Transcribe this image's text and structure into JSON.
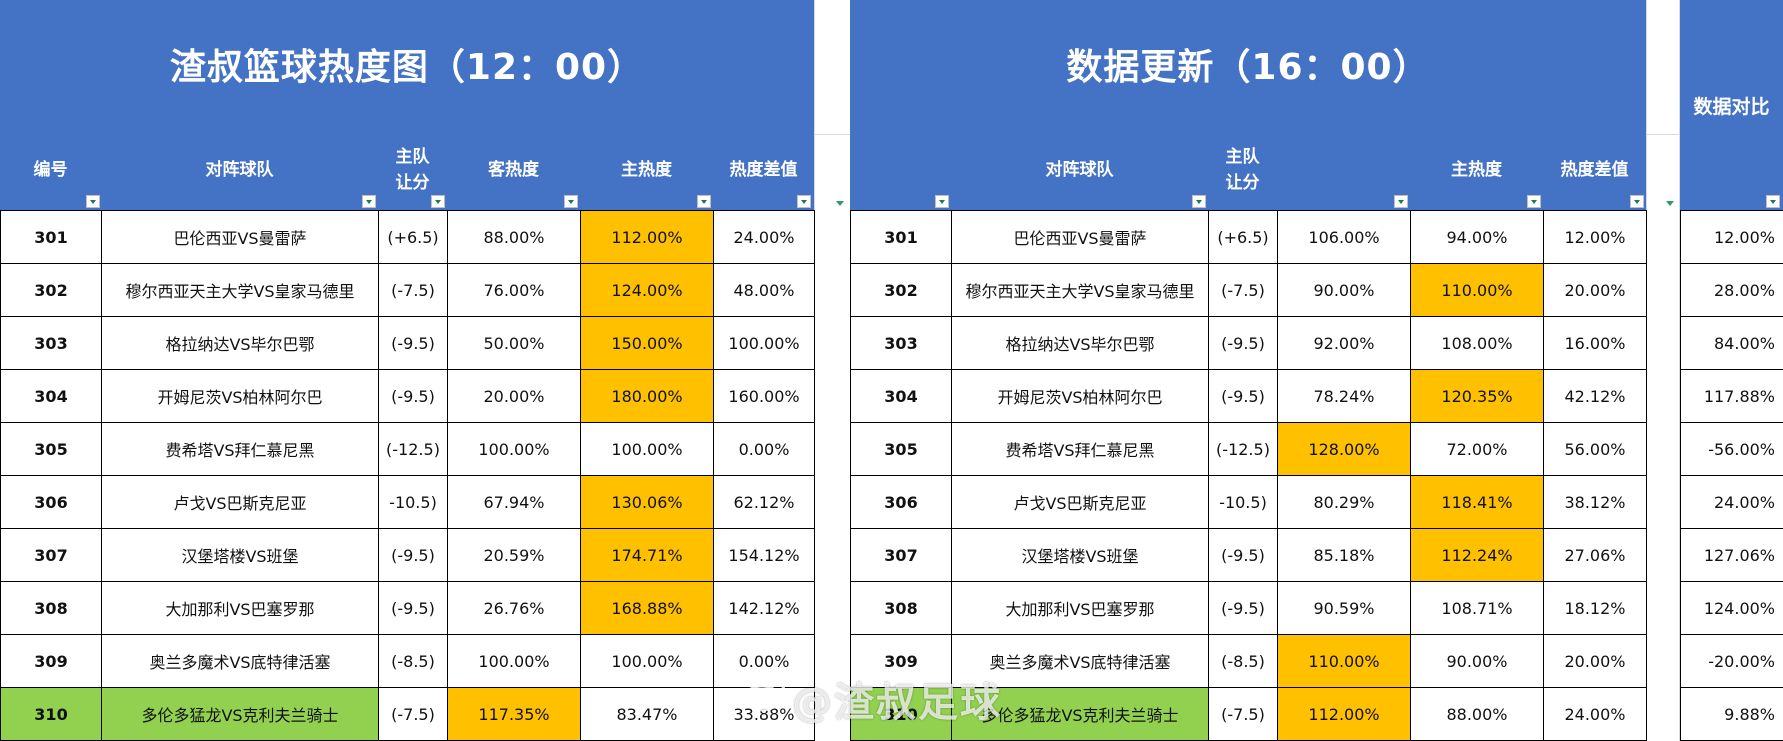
{
  "left": {
    "title": "渣叔篮球热度图（12：00）",
    "headers": [
      "编号",
      "对阵球队",
      "主队\n让分",
      "客热度",
      "主热度",
      "热度差值"
    ],
    "rows": [
      {
        "id": "301",
        "match": "巴伦西亚VS曼雷萨",
        "hc": "(+6.5)",
        "away": "88.00%",
        "home": "112.00%",
        "diff": "24.00%",
        "hl": "home"
      },
      {
        "id": "302",
        "match": "穆尔西亚天主大学VS皇家马德里",
        "hc": "(-7.5)",
        "away": "76.00%",
        "home": "124.00%",
        "diff": "48.00%",
        "hl": "home"
      },
      {
        "id": "303",
        "match": "格拉纳达VS毕尔巴鄂",
        "hc": "(-9.5)",
        "away": "50.00%",
        "home": "150.00%",
        "diff": "100.00%",
        "hl": "home"
      },
      {
        "id": "304",
        "match": "开姆尼茨VS柏林阿尔巴",
        "hc": "(-9.5)",
        "away": "20.00%",
        "home": "180.00%",
        "diff": "160.00%",
        "hl": "home"
      },
      {
        "id": "305",
        "match": "费希塔VS拜仁慕尼黑",
        "hc": "(-12.5)",
        "away": "100.00%",
        "home": "100.00%",
        "diff": "0.00%",
        "hl": ""
      },
      {
        "id": "306",
        "match": "卢戈VS巴斯克尼亚",
        "hc": "-10.5)",
        "away": "67.94%",
        "home": "130.06%",
        "diff": "62.12%",
        "hl": "home"
      },
      {
        "id": "307",
        "match": "汉堡塔楼VS班堡",
        "hc": "(-9.5)",
        "away": "20.59%",
        "home": "174.71%",
        "diff": "154.12%",
        "hl": "home"
      },
      {
        "id": "308",
        "match": "大加那利VS巴塞罗那",
        "hc": "(-9.5)",
        "away": "26.76%",
        "home": "168.88%",
        "diff": "142.12%",
        "hl": "home"
      },
      {
        "id": "309",
        "match": "奥兰多魔术VS底特律活塞",
        "hc": "(-8.5)",
        "away": "100.00%",
        "home": "100.00%",
        "diff": "0.00%",
        "hl": ""
      },
      {
        "id": "310",
        "match": "多伦多猛龙VS克利夫兰骑士",
        "hc": "(-7.5)",
        "away": "117.35%",
        "home": "83.47%",
        "diff": "33.88%",
        "hl": "away",
        "green": true
      }
    ]
  },
  "right": {
    "title": "数据更新（16：00）",
    "headers": [
      "对阵球队",
      "主队\n让分",
      "",
      "主热度",
      "热度差值"
    ],
    "rows": [
      {
        "id": "301",
        "match": "巴伦西亚VS曼雷萨",
        "hc": "(+6.5)",
        "away": "106.00%",
        "home": "94.00%",
        "diff": "12.00%",
        "hl": ""
      },
      {
        "id": "302",
        "match": "穆尔西亚天主大学VS皇家马德里",
        "hc": "(-7.5)",
        "away": "90.00%",
        "home": "110.00%",
        "diff": "20.00%",
        "hl": "home"
      },
      {
        "id": "303",
        "match": "格拉纳达VS毕尔巴鄂",
        "hc": "(-9.5)",
        "away": "92.00%",
        "home": "108.00%",
        "diff": "16.00%",
        "hl": ""
      },
      {
        "id": "304",
        "match": "开姆尼茨VS柏林阿尔巴",
        "hc": "(-9.5)",
        "away": "78.24%",
        "home": "120.35%",
        "diff": "42.12%",
        "hl": "home"
      },
      {
        "id": "305",
        "match": "费希塔VS拜仁慕尼黑",
        "hc": "(-12.5)",
        "away": "128.00%",
        "home": "72.00%",
        "diff": "56.00%",
        "hl": "away"
      },
      {
        "id": "306",
        "match": "卢戈VS巴斯克尼亚",
        "hc": "-10.5)",
        "away": "80.29%",
        "home": "118.41%",
        "diff": "38.12%",
        "hl": "home"
      },
      {
        "id": "307",
        "match": "汉堡塔楼VS班堡",
        "hc": "(-9.5)",
        "away": "85.18%",
        "home": "112.24%",
        "diff": "27.06%",
        "hl": "home"
      },
      {
        "id": "308",
        "match": "大加那利VS巴塞罗那",
        "hc": "(-9.5)",
        "away": "90.59%",
        "home": "108.71%",
        "diff": "18.12%",
        "hl": ""
      },
      {
        "id": "309",
        "match": "奥兰多魔术VS底特律活塞",
        "hc": "(-8.5)",
        "away": "110.00%",
        "home": "90.00%",
        "diff": "20.00%",
        "hl": "away"
      },
      {
        "id": "310",
        "match": "多伦多猛龙VS克利夫兰骑士",
        "hc": "(-7.5)",
        "away": "112.00%",
        "home": "88.00%",
        "diff": "24.00%",
        "hl": "away",
        "green": true
      }
    ]
  },
  "compare": {
    "title": "数据对比",
    "values": [
      "12.00%",
      "28.00%",
      "84.00%",
      "117.88%",
      "-56.00%",
      "24.00%",
      "127.06%",
      "124.00%",
      "-20.00%",
      "9.88%"
    ]
  },
  "watermark": "@渣叔足球",
  "colors": {
    "header": "#4472c4",
    "highlight": "#ffc000",
    "green": "#92d050"
  }
}
